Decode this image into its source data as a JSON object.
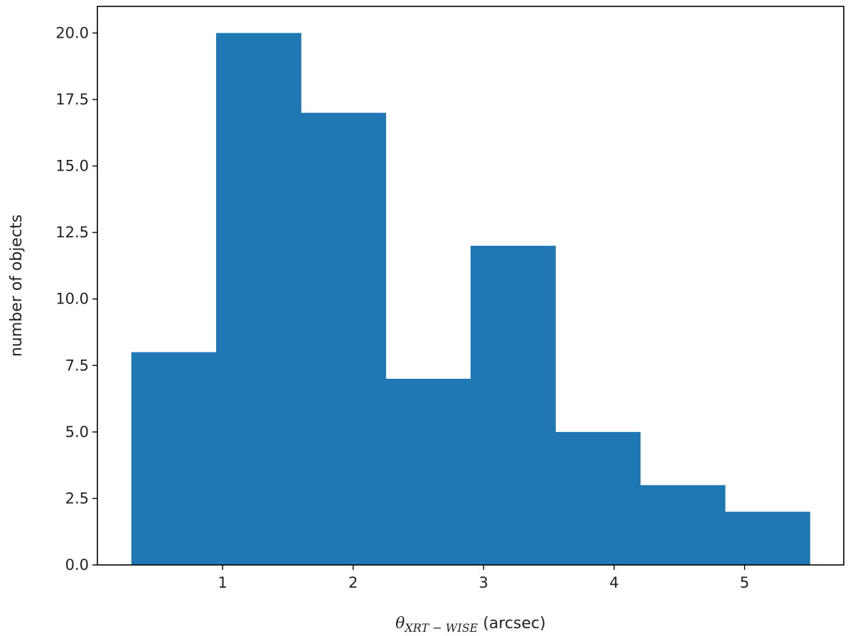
{
  "chart_data": {
    "type": "bar",
    "histogram": true,
    "bin_edges": [
      0.3,
      0.95,
      1.6,
      2.25,
      2.9,
      3.55,
      4.2,
      4.85,
      5.5
    ],
    "values": [
      8,
      20,
      17,
      7,
      12,
      5,
      3,
      2
    ],
    "bar_color": "#1f77b4",
    "xlim": [
      0.04,
      5.76
    ],
    "ylim": [
      0,
      21
    ],
    "xticks": [
      1,
      2,
      3,
      4,
      5
    ],
    "xtick_labels": [
      "1",
      "2",
      "3",
      "4",
      "5"
    ],
    "yticks": [
      0,
      2.5,
      5,
      7.5,
      10,
      12.5,
      15,
      17.5,
      20
    ],
    "ytick_labels": [
      "0.0",
      "2.5",
      "5.0",
      "7.5",
      "10.0",
      "12.5",
      "15.0",
      "17.5",
      "20.0"
    ],
    "xlabel": {
      "symbol": "θ",
      "subscript": "XRT − WISE",
      "unit": " (arcsec)"
    },
    "ylabel": "number of objects",
    "grid": false
  }
}
